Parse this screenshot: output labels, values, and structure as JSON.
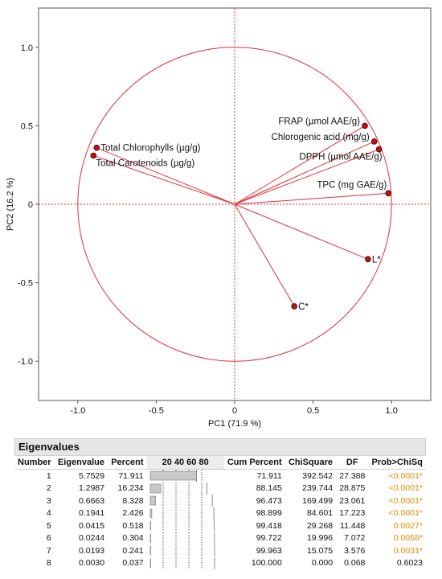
{
  "chart_data": {
    "type": "scatter",
    "xlabel": "PC1  (71.9 %)",
    "ylabel": "PC2  (16.2 %)",
    "xlim": [
      -1.25,
      1.25
    ],
    "ylim": [
      -1.25,
      1.25
    ],
    "x_ticks": [
      "-1.0",
      "-0.5",
      "0",
      "0.5",
      "1.0"
    ],
    "y_ticks": [
      "-1.0",
      "-0.5",
      "0",
      "0.5",
      "1.0"
    ],
    "x_tick_values": [
      -1.0,
      -0.5,
      0,
      0.5,
      1.0
    ],
    "y_tick_values": [
      -1.0,
      -0.5,
      0,
      0.5,
      1.0
    ],
    "unit_circle": true,
    "reference_lines": [
      0,
      0
    ],
    "colors": {
      "vector": "#e0303a",
      "point": "#c01018",
      "reference": "#e0303a"
    },
    "points": [
      {
        "label": "Total Chlorophylls (µg/g)",
        "x": -0.88,
        "y": 0.36,
        "anchor": "right"
      },
      {
        "label": "Total Carotenoids (µg/g)",
        "x": -0.9,
        "y": 0.31,
        "anchor": "below-right"
      },
      {
        "label": "FRAP (µmol AAE/g)",
        "x": 0.83,
        "y": 0.5,
        "anchor": "left"
      },
      {
        "label": "Chlorogenic acid (mg/g)",
        "x": 0.89,
        "y": 0.4,
        "anchor": "left"
      },
      {
        "label": "DPPH (µmol AAE/g)",
        "x": 0.92,
        "y": 0.35,
        "anchor": "below-left"
      },
      {
        "label": "TPC (mg GAE/g)",
        "x": 0.98,
        "y": 0.07,
        "anchor": "above-left"
      },
      {
        "label": "L*",
        "x": 0.85,
        "y": -0.35,
        "anchor": "right"
      },
      {
        "label": "C*",
        "x": 0.38,
        "y": -0.65,
        "anchor": "right"
      }
    ]
  },
  "eigen": {
    "title": "Eigenvalues",
    "headers": {
      "number": "Number",
      "eigenvalue": "Eigenvalue",
      "percent": "Percent",
      "bar_ticks": "20  40  60  80",
      "cum": "Cum Percent",
      "chisq": "ChiSquare",
      "df": "DF",
      "prob": "Prob>ChiSq"
    },
    "rows": [
      {
        "number": "1",
        "eigenvalue": "5.7529",
        "percent": "71.911",
        "cum": "71.911",
        "chisq": "392.542",
        "df": "27.388",
        "prob": "<0.0001*",
        "pct_value": 71.911
      },
      {
        "number": "2",
        "eigenvalue": "1.2987",
        "percent": "16.234",
        "cum": "88.145",
        "chisq": "239.744",
        "df": "28.875",
        "prob": "<0.0001*",
        "pct_value": 16.234
      },
      {
        "number": "3",
        "eigenvalue": "0.6663",
        "percent": "8.328",
        "cum": "96.473",
        "chisq": "169.499",
        "df": "23.061",
        "prob": "<0.0001*",
        "pct_value": 8.328
      },
      {
        "number": "4",
        "eigenvalue": "0.1941",
        "percent": "2.426",
        "cum": "98.899",
        "chisq": "84.601",
        "df": "17.223",
        "prob": "<0.0001*",
        "pct_value": 2.426
      },
      {
        "number": "5",
        "eigenvalue": "0.0415",
        "percent": "0.518",
        "cum": "99.418",
        "chisq": "29.268",
        "df": "11.448",
        "prob": "0.0027*",
        "pct_value": 0.518
      },
      {
        "number": "6",
        "eigenvalue": "0.0244",
        "percent": "0.304",
        "cum": "99.722",
        "chisq": "19.996",
        "df": "7.072",
        "prob": "0.0058*",
        "pct_value": 0.304
      },
      {
        "number": "7",
        "eigenvalue": "0.0193",
        "percent": "0.241",
        "cum": "99.963",
        "chisq": "15.075",
        "df": "3.576",
        "prob": "0.0031*",
        "pct_value": 0.241
      },
      {
        "number": "8",
        "eigenvalue": "0.0030",
        "percent": "0.037",
        "cum": "100.000",
        "chisq": "0.000",
        "df": "0.068",
        "prob": "0.6023",
        "pct_value": 0.037
      }
    ],
    "colors": {
      "bar": "#c8c8c8",
      "bar_stroke": "#7a7a7a",
      "significant": "#e88a00",
      "cum_line": "#8a8a8a"
    }
  }
}
